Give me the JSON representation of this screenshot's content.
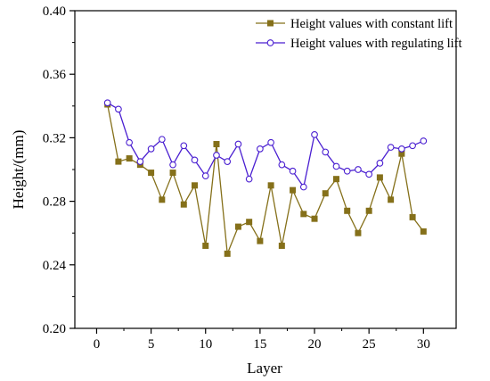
{
  "chart_data": {
    "type": "line",
    "title": "",
    "xlabel": "Layer",
    "ylabel": "Height/(mm)",
    "xlim": [
      -2,
      33
    ],
    "ylim": [
      0.2,
      0.4
    ],
    "xticks": [
      0,
      5,
      10,
      15,
      20,
      25,
      30
    ],
    "yticks": [
      0.2,
      0.24,
      0.28,
      0.32,
      0.36,
      0.4
    ],
    "x_tick_labels": [
      "0",
      "5",
      "10",
      "15",
      "20",
      "25",
      "30"
    ],
    "y_tick_labels": [
      "0.20",
      "0.24",
      "0.28",
      "0.32",
      "0.36",
      "0.40"
    ],
    "grid": false,
    "legend_position": "top-right",
    "x": [
      1,
      2,
      3,
      4,
      5,
      6,
      7,
      8,
      9,
      10,
      11,
      12,
      13,
      14,
      15,
      16,
      17,
      18,
      19,
      20,
      21,
      22,
      23,
      24,
      25,
      26,
      27,
      28,
      29,
      30
    ],
    "series": [
      {
        "name": "Height values with constant lift",
        "color": "#85701a",
        "marker": "filled-square",
        "values": [
          0.341,
          0.305,
          0.307,
          0.303,
          0.298,
          0.281,
          0.298,
          0.278,
          0.29,
          0.252,
          0.316,
          0.247,
          0.264,
          0.267,
          0.255,
          0.29,
          0.252,
          0.287,
          0.272,
          0.269,
          0.285,
          0.294,
          0.274,
          0.26,
          0.274,
          0.295,
          0.281,
          0.31,
          0.27,
          0.261
        ]
      },
      {
        "name": "Height values with regulating lift",
        "color": "#4a1fd1",
        "marker": "open-circle",
        "values": [
          0.342,
          0.338,
          0.317,
          0.305,
          0.313,
          0.319,
          0.303,
          0.315,
          0.306,
          0.296,
          0.309,
          0.305,
          0.316,
          0.294,
          0.313,
          0.317,
          0.303,
          0.299,
          0.289,
          0.322,
          0.311,
          0.302,
          0.299,
          0.3,
          0.297,
          0.304,
          0.314,
          0.313,
          0.315,
          0.318
        ]
      }
    ]
  }
}
